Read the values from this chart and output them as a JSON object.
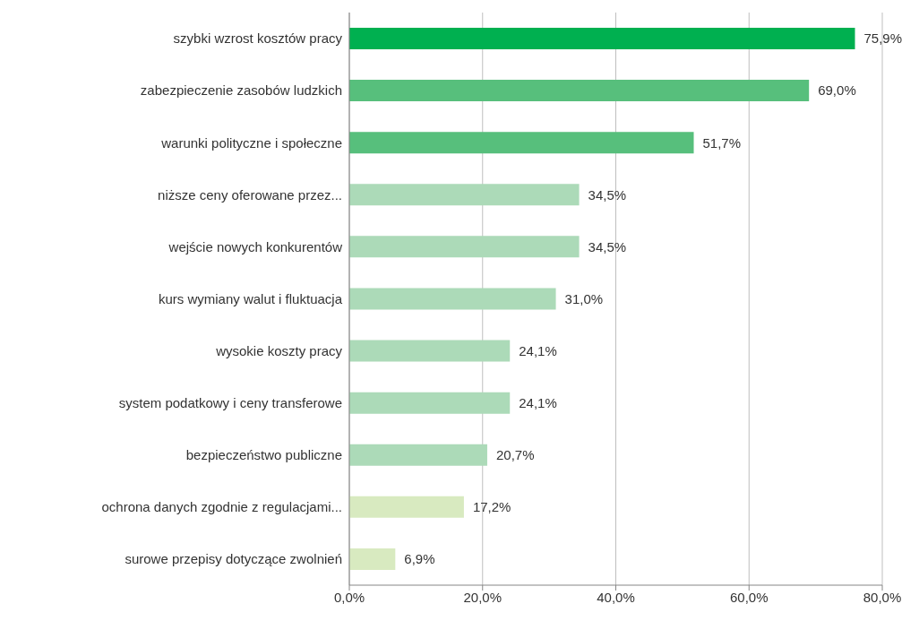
{
  "chart_data": {
    "type": "bar",
    "orientation": "horizontal",
    "categories": [
      "szybki wzrost kosztów pracy",
      "zabezpieczenie zasobów ludzkich",
      "warunki polityczne i społeczne",
      "niższe ceny oferowane przez...",
      "wejście nowych konkurentów",
      "kurs wymiany walut i fluktuacja",
      "wysokie koszty pracy",
      "system podatkowy i ceny transferowe",
      "bezpieczeństwo publiczne",
      "ochrona danych zgodnie z regulacjami...",
      "surowe przepisy dotyczące zwolnień"
    ],
    "values": [
      75.9,
      69.0,
      51.7,
      34.5,
      34.5,
      31.0,
      24.1,
      24.1,
      20.7,
      17.2,
      6.9
    ],
    "colors": [
      "#00b050",
      "#57bf7c",
      "#57bf7c",
      "#acdab8",
      "#acdab8",
      "#acdab8",
      "#acdab8",
      "#acdab8",
      "#acdab8",
      "#d8eac0",
      "#d8eac0"
    ],
    "value_labels": [
      "75,9%",
      "69,0%",
      "51,7%",
      "34,5%",
      "34,5%",
      "31,0%",
      "24,1%",
      "24,1%",
      "20,7%",
      "17,2%",
      "6,9%"
    ],
    "xlim": [
      0,
      80
    ],
    "xticks": [
      {
        "value": 0,
        "label": "0,0%"
      },
      {
        "value": 20,
        "label": "20,0%"
      },
      {
        "value": 40,
        "label": "40,0%"
      },
      {
        "value": 60,
        "label": "60,0%"
      },
      {
        "value": 80,
        "label": "80,0%"
      }
    ],
    "grid": "x"
  }
}
